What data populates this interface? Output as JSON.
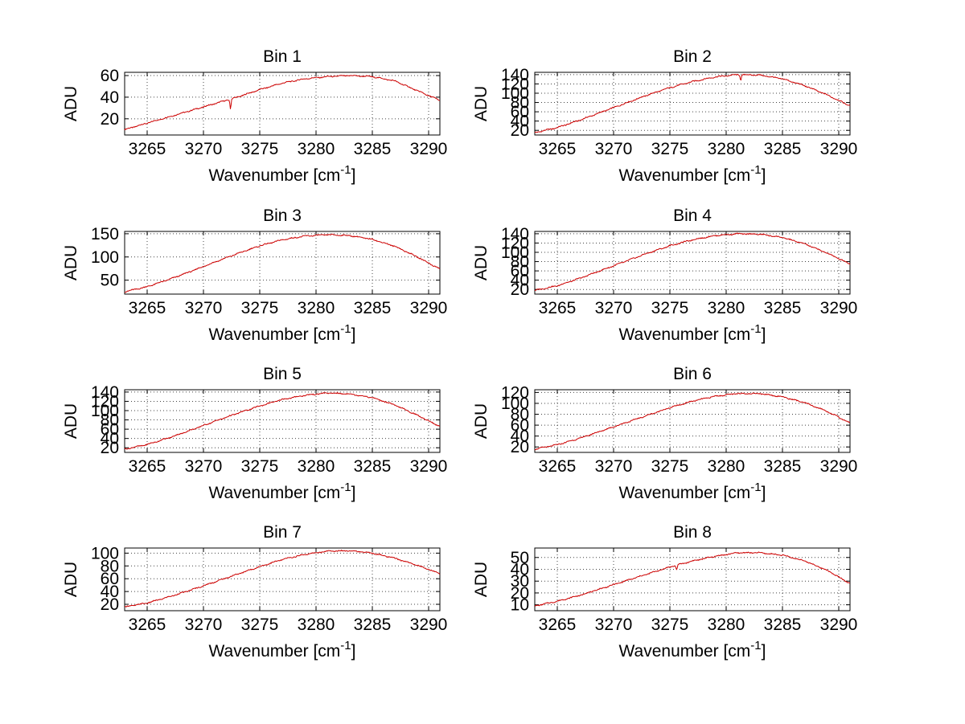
{
  "figure": {
    "background": "#ffffff"
  },
  "chart_data": {
    "type": "line",
    "layout": {
      "rows": 4,
      "cols": 2,
      "grid": true,
      "legend": "none"
    },
    "xlabel": {
      "base": "Wavenumber [cm",
      "sup": "-1",
      "close": "]"
    },
    "ylabel": "ADU",
    "x_ticks": [
      3265,
      3270,
      3275,
      3280,
      3285,
      3290
    ],
    "xlim": [
      3263,
      3291
    ],
    "x": [
      3263,
      3265,
      3267,
      3269,
      3271,
      3273,
      3275,
      3277,
      3279,
      3281,
      3283,
      3285,
      3287,
      3289,
      3291
    ],
    "series_color": "#cc0000",
    "grid_color": "#444444",
    "axis_color": "#000000",
    "subplots": [
      {
        "title": "Bin 1",
        "ylim": [
          5,
          63
        ],
        "y_ticks": [
          20,
          40,
          60
        ],
        "values": [
          10,
          16,
          22,
          28,
          34,
          40,
          47,
          53,
          57,
          59,
          60,
          59,
          55,
          46,
          37
        ],
        "dips": [
          {
            "x": 3272.4,
            "depth": 9
          }
        ]
      },
      {
        "title": "Bin 2",
        "ylim": [
          10,
          145
        ],
        "y_ticks": [
          20,
          40,
          60,
          80,
          100,
          120,
          140
        ],
        "values": [
          15,
          26,
          42,
          60,
          78,
          96,
          112,
          125,
          135,
          140,
          139,
          131,
          116,
          96,
          73
        ],
        "dips": [
          {
            "x": 3281.3,
            "depth": 12
          }
        ]
      },
      {
        "title": "Bin 3",
        "ylim": [
          20,
          155
        ],
        "y_ticks": [
          50,
          100,
          150
        ],
        "values": [
          25,
          36,
          52,
          70,
          89,
          107,
          124,
          137,
          145,
          148,
          146,
          138,
          123,
          100,
          74
        ],
        "dips": []
      },
      {
        "title": "Bin 4",
        "ylim": [
          10,
          145
        ],
        "y_ticks": [
          20,
          40,
          60,
          80,
          100,
          120,
          140
        ],
        "values": [
          18,
          28,
          44,
          62,
          80,
          98,
          114,
          127,
          136,
          140,
          139,
          132,
          118,
          98,
          75
        ],
        "dips": []
      },
      {
        "title": "Bin 5",
        "ylim": [
          10,
          145
        ],
        "y_ticks": [
          20,
          40,
          60,
          80,
          100,
          120,
          140
        ],
        "values": [
          17,
          27,
          42,
          59,
          77,
          94,
          110,
          124,
          133,
          138,
          136,
          128,
          112,
          90,
          66
        ],
        "dips": []
      },
      {
        "title": "Bin 6",
        "ylim": [
          10,
          125
        ],
        "y_ticks": [
          20,
          40,
          60,
          80,
          100,
          120
        ],
        "values": [
          16,
          24,
          36,
          50,
          64,
          78,
          92,
          104,
          113,
          118,
          118,
          112,
          101,
          85,
          64
        ],
        "dips": []
      },
      {
        "title": "Bin 7",
        "ylim": [
          10,
          108
        ],
        "y_ticks": [
          20,
          40,
          60,
          80,
          100
        ],
        "values": [
          16,
          22,
          32,
          43,
          55,
          67,
          79,
          90,
          98,
          103,
          104,
          100,
          92,
          81,
          68
        ],
        "dips": []
      },
      {
        "title": "Bin 8",
        "ylim": [
          5,
          58
        ],
        "y_ticks": [
          10,
          20,
          30,
          40,
          50
        ],
        "values": [
          9,
          13,
          18,
          24,
          30,
          36,
          42,
          47,
          51,
          54,
          54,
          52,
          47,
          39,
          28
        ],
        "dips": [
          {
            "x": 3275.6,
            "depth": 4
          }
        ]
      }
    ]
  }
}
